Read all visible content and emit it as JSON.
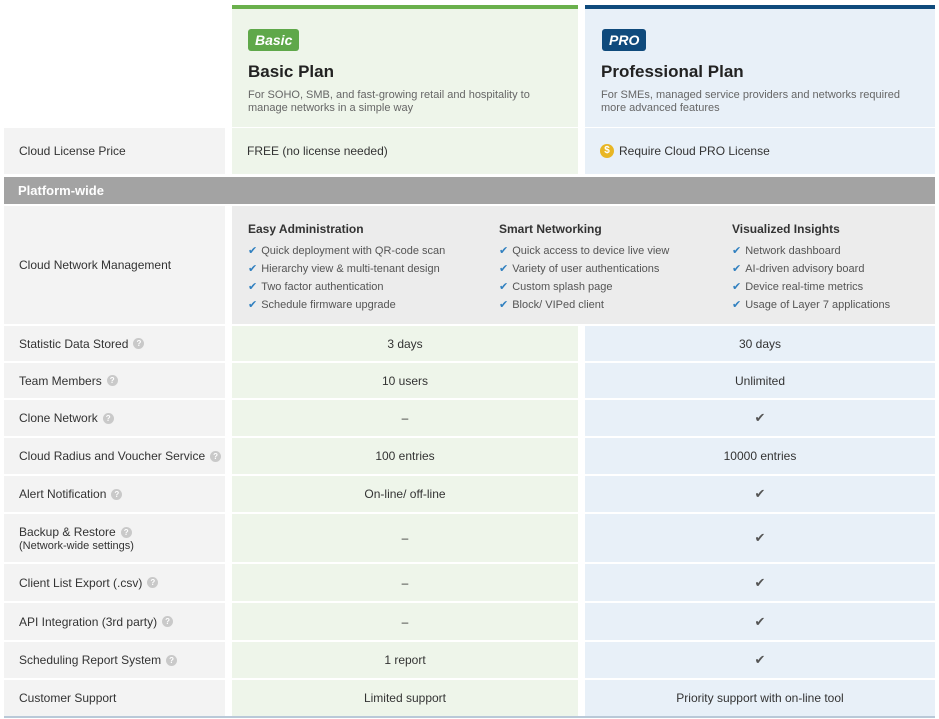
{
  "plans": {
    "basic": {
      "badge": "Basic",
      "title": "Basic Plan",
      "description": "For SOHO, SMB, and fast-growing retail and hospitality to manage networks in a simple way",
      "color": "#6ab04c"
    },
    "pro": {
      "badge": "PRO",
      "title": "Professional Plan",
      "description": "For SMEs, managed service providers and networks required more advanced features",
      "color": "#0f4a7c"
    }
  },
  "license": {
    "label": "Cloud License Price",
    "basic": "FREE (no license needed)",
    "pro": "Require Cloud PRO License",
    "pro_icon": "dollar-coin-icon",
    "coin_glyph": "$"
  },
  "section": {
    "title": "Platform-wide"
  },
  "management": {
    "label": "Cloud Network Management",
    "groups": [
      {
        "title": "Easy Administration",
        "items": [
          "Quick deployment with QR-code scan",
          "Hierarchy view & multi-tenant design",
          "Two factor authentication",
          "Schedule firmware upgrade"
        ]
      },
      {
        "title": "Smart Networking",
        "items": [
          "Quick access to device live view",
          "Variety of user authentications",
          "Custom splash page",
          "Block/ VIPed client"
        ]
      },
      {
        "title": "Visualized Insights",
        "items": [
          "Network dashboard",
          "AI-driven advisory board",
          "Device real-time metrics",
          "Usage of Layer 7 applications"
        ]
      }
    ]
  },
  "rows": [
    {
      "label": "Statistic Data Stored",
      "basic": "3 days",
      "pro": "30 days"
    },
    {
      "label": "Team Members",
      "basic": "10 users",
      "pro": "Unlimited"
    },
    {
      "label": "Clone Network",
      "basic": "–",
      "pro": "✔"
    },
    {
      "label": "Cloud Radius and Voucher Service",
      "basic": "100 entries",
      "pro": "10000 entries"
    },
    {
      "label": "Alert Notification",
      "basic": "On-line/ off-line",
      "pro": "✔"
    },
    {
      "label": "Backup & Restore",
      "sublabel": "(Network-wide settings)",
      "basic": "–",
      "pro": "✔"
    },
    {
      "label": "Client List Export (.csv)",
      "basic": "–",
      "pro": "✔"
    },
    {
      "label": "API Integration (3rd party)",
      "basic": "–",
      "pro": "✔"
    },
    {
      "label": "Scheduling Report System",
      "basic": "1 report",
      "pro": "✔"
    },
    {
      "label": "Customer Support",
      "basic": "Limited support",
      "pro": "Priority support with on-line tool"
    }
  ],
  "help_glyph": "?",
  "check_glyph": "✔"
}
